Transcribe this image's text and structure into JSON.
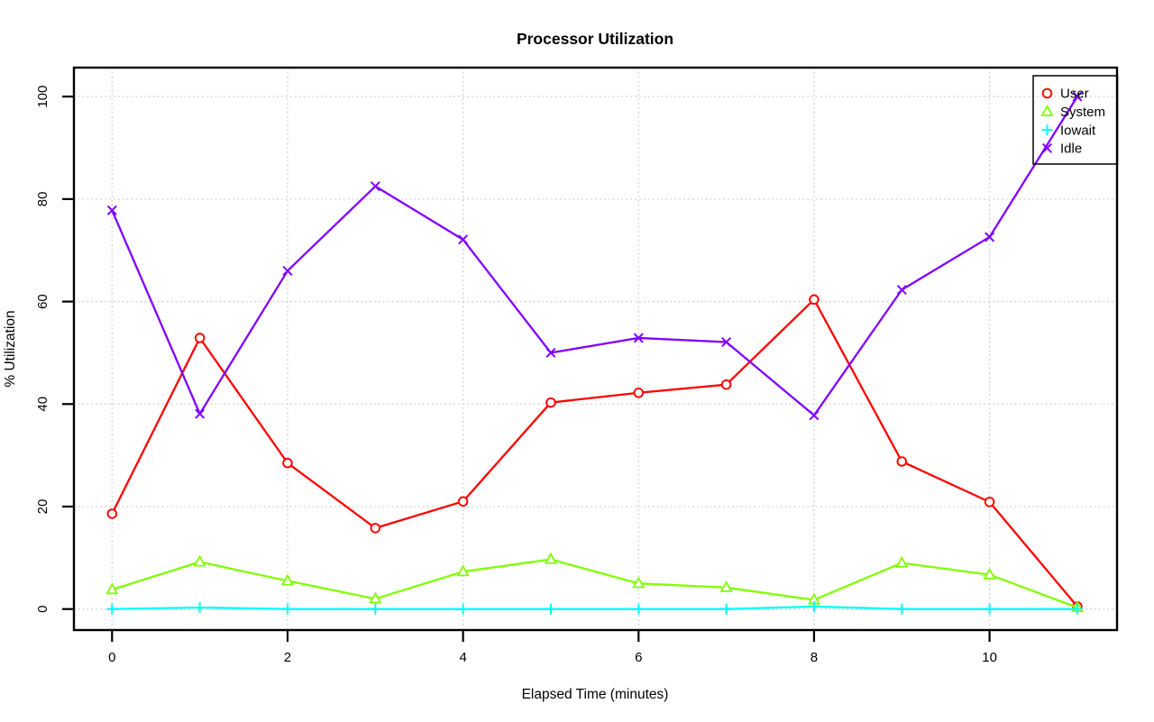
{
  "chart_data": {
    "type": "line",
    "title": "Processor Utilization",
    "xlabel": "Elapsed Time (minutes)",
    "ylabel": "% Utilization",
    "x": [
      0,
      1,
      2,
      3,
      4,
      5,
      6,
      7,
      8,
      9,
      10,
      11
    ],
    "x_ticks": [
      0,
      2,
      4,
      6,
      8,
      10
    ],
    "y_ticks": [
      0,
      20,
      40,
      60,
      80,
      100
    ],
    "xlim": [
      -0.45,
      11.45
    ],
    "ylim": [
      -4,
      104
    ],
    "grid": true,
    "grid_style": "dotted",
    "grid_color": "#c8c8c8",
    "legend_position": "top-right",
    "series": [
      {
        "name": "User",
        "color": "#ff0000",
        "marker": "circle",
        "values": [
          18.6,
          52.9,
          28.5,
          15.8,
          21.0,
          40.3,
          42.2,
          43.8,
          60.4,
          28.8,
          20.9,
          0.5
        ]
      },
      {
        "name": "System",
        "color": "#80ff00",
        "marker": "triangle",
        "values": [
          3.8,
          9.2,
          5.5,
          2.0,
          7.3,
          9.7,
          5.0,
          4.2,
          1.8,
          9.0,
          6.7,
          0.3
        ]
      },
      {
        "name": "Iowait",
        "color": "#00ffff",
        "marker": "plus",
        "values": [
          0,
          0.3,
          0,
          0,
          0,
          0,
          0,
          0,
          0.5,
          0,
          0,
          0
        ]
      },
      {
        "name": "Idle",
        "color": "#8000ff",
        "marker": "x",
        "values": [
          77.8,
          38.1,
          66.0,
          82.5,
          72.1,
          50.0,
          52.9,
          52.1,
          37.8,
          62.3,
          72.6,
          100.0
        ]
      }
    ]
  }
}
